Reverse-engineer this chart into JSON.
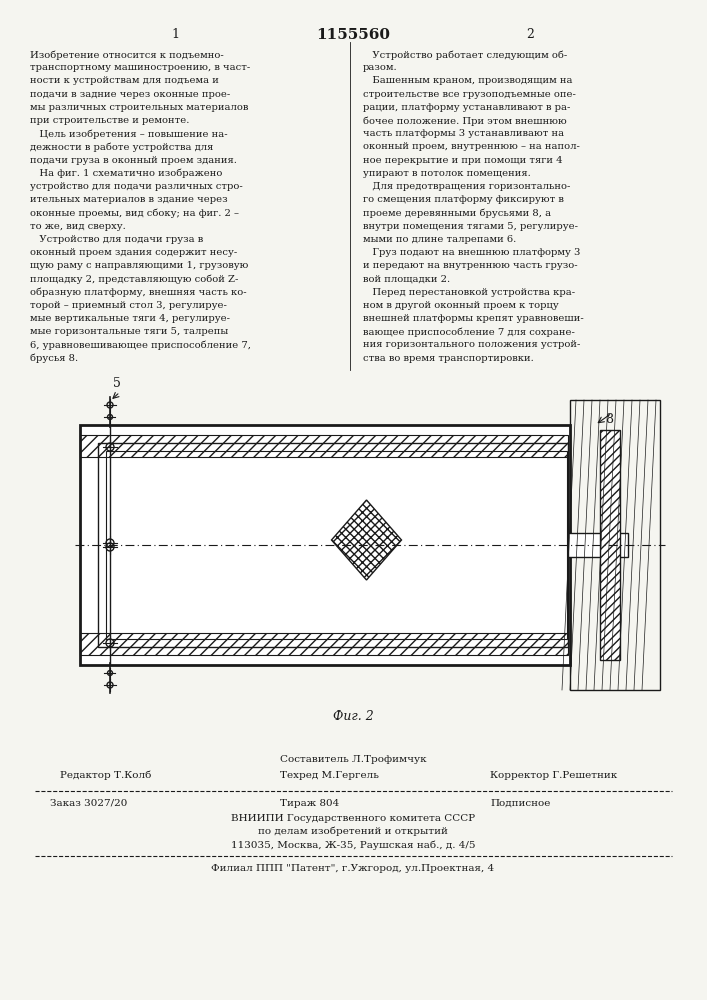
{
  "page_number_left": "1",
  "patent_number": "1155560",
  "page_number_right": "2",
  "col1_text": [
    "Изобретение относится к подъемно-",
    "транспортному машиностроению, в част-",
    "ности к устройствам для подъема и",
    "подачи в задние через оконные прое-",
    "мы различных строительных материалов",
    "при строительстве и ремонте.",
    "   Цель изобретения – повышение на-",
    "дежности в работе устройства для",
    "подачи груза в оконный проем здания.",
    "   На фиг. 1 схематично изображено",
    "устройство для подачи различных стро-",
    "ительных материалов в здание через",
    "оконные проемы, вид сбоку; на фиг. 2 –",
    "то же, вид сверху.",
    "   Устройство для подачи груза в",
    "оконный проем здания содержит несу-",
    "щую раму с направляющими 1, грузовую",
    "площадку 2, представляющую собой Z-",
    "образную платформу, внешняя часть ко-",
    "торой – приемный стол 3, регулируе-",
    "мые вертикальные тяги 4, регулируе-",
    "мые горизонтальные тяги 5, талрепы",
    "6, уравновешивающее приспособление 7,",
    "брусья 8."
  ],
  "col2_text": [
    "   Устройство работает следующим об-",
    "разом.",
    "   Башенным краном, производящим на",
    "строительстве все грузоподъемные опе-",
    "рации, платформу устанавливают в ра-",
    "бочее положение. При этом внешнюю",
    "часть платформы 3 устанавливают на",
    "оконный проем, внутреннюю – на напол-",
    "ное перекрытие и при помощи тяги 4",
    "упирают в потолок помещения.",
    "   Для предотвращения горизонтально-",
    "го смещения платформу фиксируют в",
    "проеме деревянными брусьями 8, а",
    "внутри помещения тягами 5, регулируе-",
    "мыми по длине талрепами 6.",
    "   Груз подают на внешнюю платформу 3",
    "и передают на внутреннюю часть грузо-",
    "вой площадки 2.",
    "   Перед перестановкой устройства кра-",
    "ном в другой оконный проем к торцу",
    "внешней платформы крепят уравновеши-",
    "вающее приспособление 7 для сохране-",
    "ния горизонтального положения устрой-",
    "ства во время транспортировки."
  ],
  "fig_label": "Фиг. 2",
  "label_5": "5",
  "label_8": "8",
  "footer_line1": "Составитель Л.Трофимчук",
  "footer_editor": "Редактор Т.Колб",
  "footer_techred": "Техред М.Гергель",
  "footer_corrector": "Корректор Г.Решетник",
  "footer_order": "Заказ 3027/20",
  "footer_tirazh": "Тираж 804",
  "footer_podpisnoe": "Подписное",
  "footer_vniipи": "ВНИИПИ Государственного комитета СССР",
  "footer_po_delam": "по делам изобретений и открытий",
  "footer_address": "113035, Москва, Ж-35, Раушская наб., д. 4/5",
  "footer_filial": "Филиал ППП \"Патент\", г.Ужгород, ул.Проектная, 4",
  "bg_color": "#f5f5f0",
  "text_color": "#1a1a1a",
  "line_color": "#1a1a1a"
}
